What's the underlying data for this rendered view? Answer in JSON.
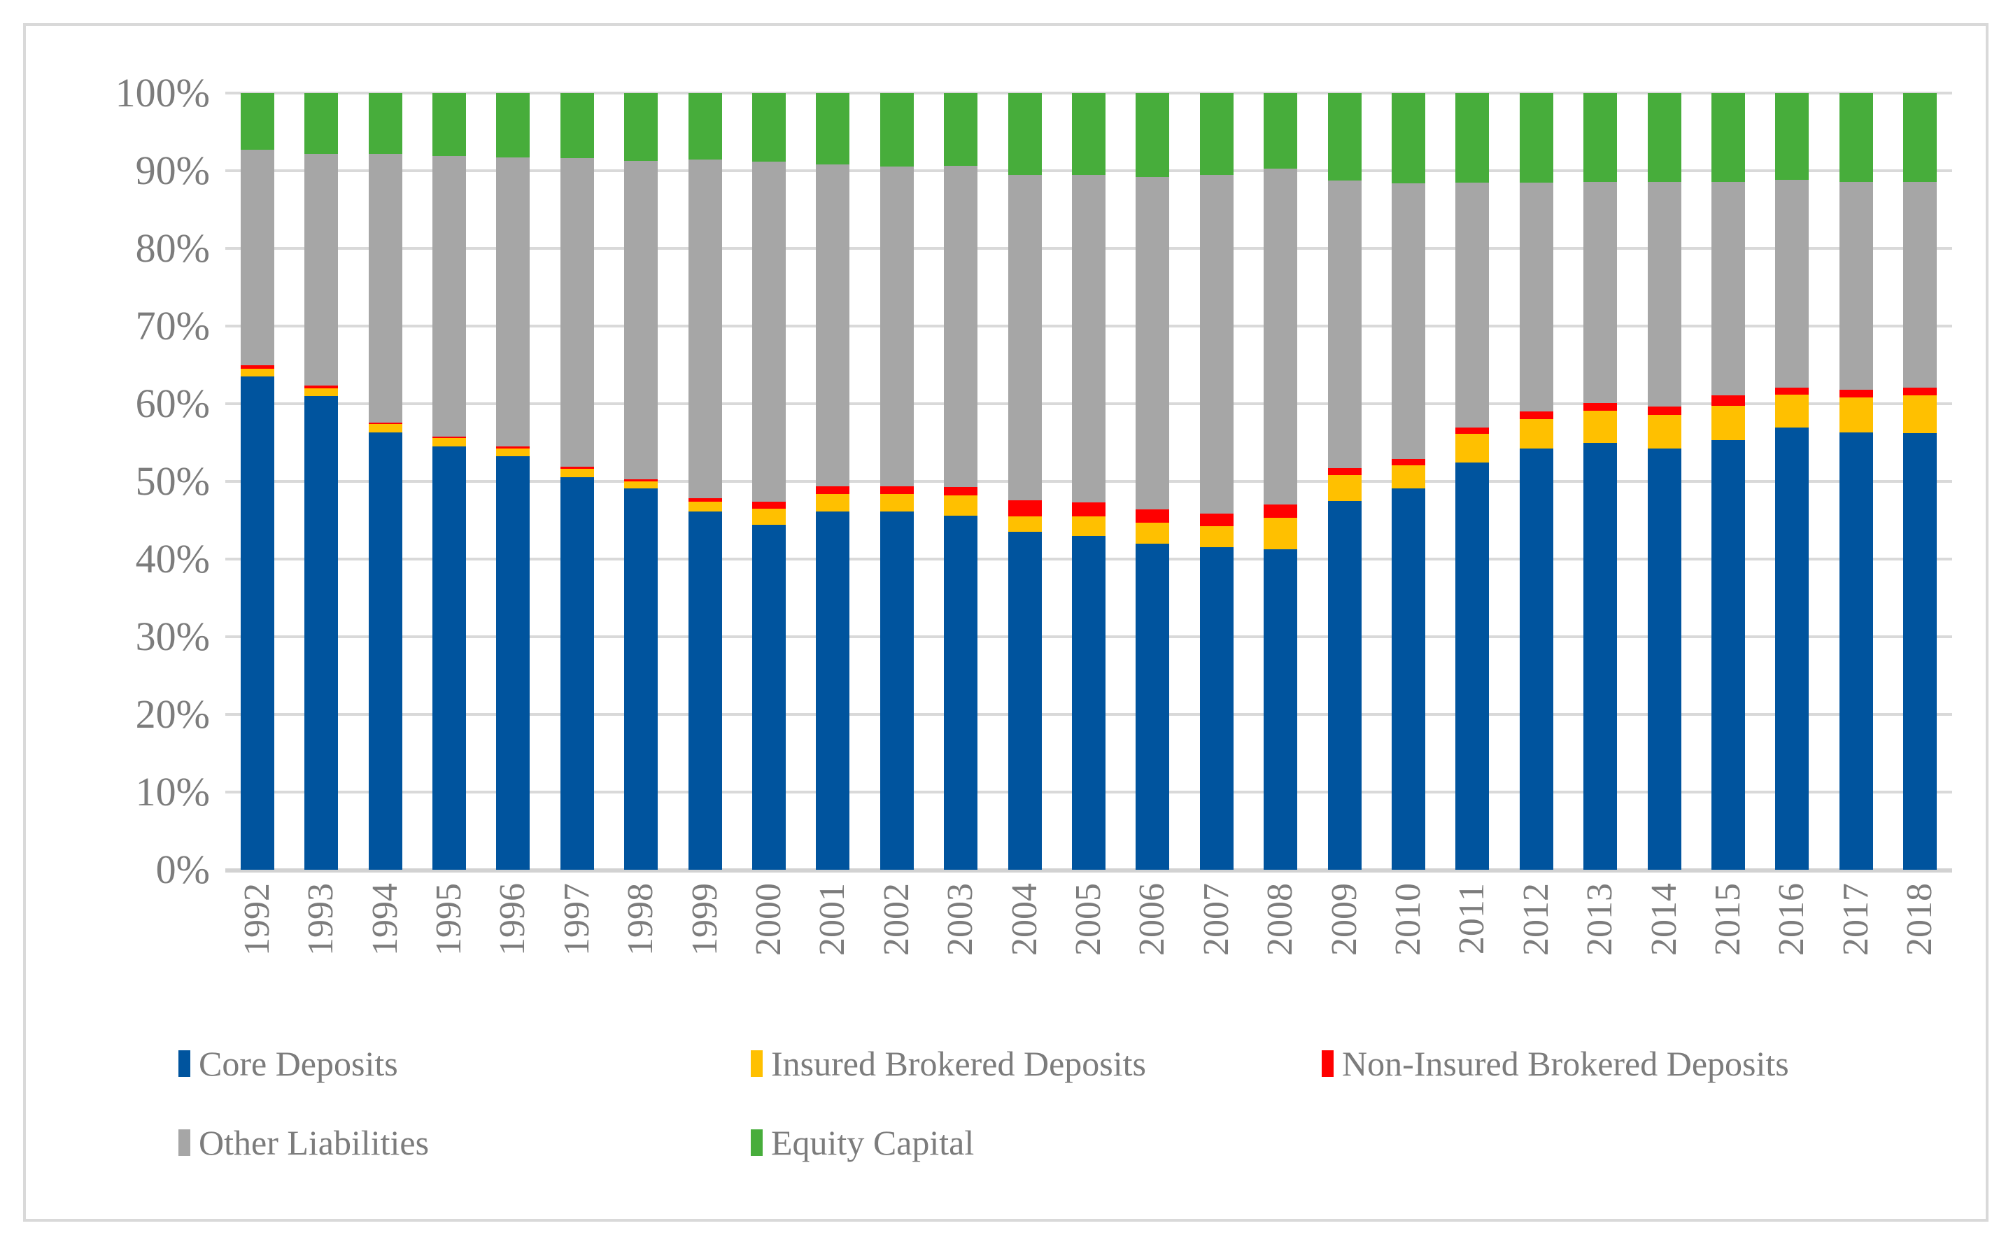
{
  "chart_data": {
    "type": "bar",
    "stacked": true,
    "percent_stacked": true,
    "title": "",
    "xlabel": "",
    "ylabel": "",
    "categories": [
      "1992",
      "1993",
      "1994",
      "1995",
      "1996",
      "1997",
      "1998",
      "1999",
      "2000",
      "2001",
      "2002",
      "2003",
      "2004",
      "2005",
      "2006",
      "2007",
      "2008",
      "2009",
      "2010",
      "2011",
      "2012",
      "2013",
      "2014",
      "2015",
      "2016",
      "2017",
      "2018"
    ],
    "series": [
      {
        "name": "Core Deposits",
        "color": "#00549E",
        "values": [
          63.5,
          61.0,
          56.3,
          54.5,
          53.2,
          50.5,
          49.1,
          46.1,
          44.4,
          46.1,
          46.1,
          45.6,
          43.5,
          43.0,
          42.0,
          41.5,
          41.3,
          47.5,
          49.1,
          52.4,
          54.2,
          55.0,
          54.2,
          55.3,
          56.9,
          56.3,
          56.2
        ]
      },
      {
        "name": "Insured Brokered Deposits",
        "color": "#FFC000",
        "values": [
          1.0,
          1.0,
          1.1,
          1.1,
          1.0,
          1.1,
          0.9,
          1.3,
          2.1,
          2.3,
          2.3,
          2.6,
          2.0,
          2.5,
          2.7,
          2.7,
          4.0,
          3.3,
          3.0,
          3.7,
          3.8,
          4.1,
          4.4,
          4.4,
          4.3,
          4.5,
          4.9
        ]
      },
      {
        "name": "Non-Insured Brokered Deposits",
        "color": "#FF0000",
        "values": [
          0.5,
          0.3,
          0.2,
          0.2,
          0.3,
          0.3,
          0.3,
          0.4,
          0.9,
          1.0,
          1.0,
          1.1,
          2.1,
          1.8,
          1.7,
          1.7,
          1.7,
          0.9,
          0.8,
          0.8,
          1.0,
          1.0,
          1.0,
          1.4,
          0.9,
          1.0,
          1.0
        ]
      },
      {
        "name": "Other Liabilities",
        "color": "#A6A6A6",
        "values": [
          27.7,
          29.9,
          34.6,
          36.1,
          37.2,
          39.7,
          41.0,
          43.6,
          43.8,
          41.4,
          41.1,
          41.3,
          41.9,
          42.2,
          42.8,
          43.6,
          43.3,
          37.0,
          35.5,
          31.6,
          29.5,
          28.5,
          29.0,
          27.5,
          26.7,
          26.8,
          26.5
        ]
      },
      {
        "name": "Equity Capital",
        "color": "#47AD3B",
        "values": [
          7.3,
          7.8,
          7.8,
          8.1,
          8.3,
          8.4,
          8.7,
          8.6,
          8.8,
          9.2,
          9.5,
          9.4,
          10.5,
          10.5,
          10.8,
          10.5,
          9.7,
          11.3,
          11.6,
          11.5,
          11.5,
          11.4,
          11.4,
          11.4,
          11.2,
          11.4,
          11.4
        ]
      }
    ],
    "y_axis": {
      "ticks": [
        "100%",
        "90%",
        "80%",
        "70%",
        "60%",
        "50%",
        "40%",
        "30%",
        "20%",
        "10%",
        "0%"
      ],
      "min": 0,
      "max": 100,
      "grid": true,
      "gridline_color": "#D9D9D9"
    },
    "legend_position": "bottom",
    "legend_rows": [
      [
        0,
        1,
        2
      ],
      [
        3,
        4
      ]
    ],
    "legend_row1_x": [
      255,
      1073,
      1889
    ],
    "legend_row2_x": [
      255,
      1073
    ],
    "text_color": "#7C7C7C",
    "frame_border_color": "#D9D9D9"
  }
}
